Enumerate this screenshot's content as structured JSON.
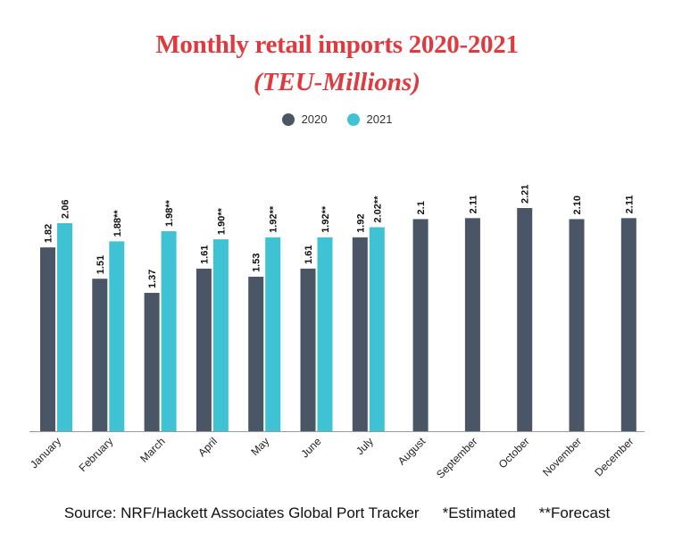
{
  "title": "Monthly retail imports 2020-2021",
  "subtitle": "(TEU-Millions)",
  "colors": {
    "title": "#e0393e",
    "series_2020": "#4a5566",
    "series_2021": "#3fc3d4",
    "axis": "#999999"
  },
  "legend": [
    {
      "name": "2020",
      "color": "#4a5566"
    },
    {
      "name": "2021",
      "color": "#3fc3d4"
    }
  ],
  "chart_data": {
    "type": "bar",
    "categories": [
      "January",
      "February",
      "March",
      "April",
      "May",
      "June",
      "July",
      "August",
      "September",
      "October",
      "November",
      "December"
    ],
    "series": [
      {
        "name": "2020",
        "values": [
          1.82,
          1.51,
          1.37,
          1.61,
          1.53,
          1.61,
          1.92,
          2.1,
          2.11,
          2.21,
          2.1,
          2.11
        ],
        "labels": [
          "1.82",
          "1.51",
          "1.37",
          "1.61",
          "1.53",
          "1.61",
          "1.92",
          "2.1",
          "2.11",
          "2.21",
          "2.10",
          "2.11"
        ]
      },
      {
        "name": "2021",
        "values": [
          2.06,
          1.88,
          1.98,
          1.9,
          1.92,
          1.92,
          2.02,
          null,
          null,
          null,
          null,
          null
        ],
        "labels": [
          "2.06",
          "1.88**",
          "1.98**",
          "1.90**",
          "1.92**",
          "1.92**",
          "2.02**",
          "",
          "",
          "",
          "",
          ""
        ]
      }
    ],
    "ylim": [
      0,
      2.21
    ],
    "grid": false,
    "legend_position": "top-center"
  },
  "footer": {
    "source": "Source: NRF/Hackett Associates Global Port Tracker",
    "estimated": "*Estimated",
    "forecast": "**Forecast"
  }
}
